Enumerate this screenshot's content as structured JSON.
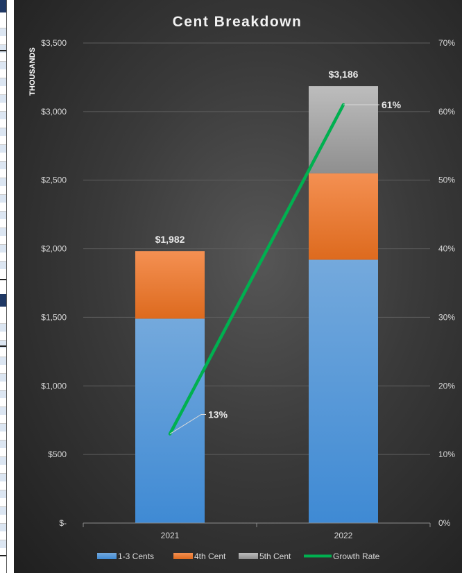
{
  "chart_data": {
    "type": "bar",
    "stacked": true,
    "title": "Cent Breakdown",
    "ylabel": "THOUSANDS",
    "categories": [
      "2021",
      "2022"
    ],
    "ylim": [
      0,
      3500
    ],
    "y_ticks": [
      "$-",
      "$500",
      "$1,000",
      "$1,500",
      "$2,000",
      "$2,500",
      "$3,000",
      "$3,500"
    ],
    "y2lim": [
      0,
      70
    ],
    "y2_ticks": [
      "0%",
      "10%",
      "20%",
      "30%",
      "40%",
      "50%",
      "60%",
      "70%"
    ],
    "series": [
      {
        "name": "1-3 Cents",
        "values": [
          1490,
          1920
        ],
        "color": "#5b9bd5",
        "axis": "left",
        "kind": "bar"
      },
      {
        "name": "4th Cent",
        "values": [
          492,
          630
        ],
        "color": "#ed7d31",
        "axis": "left",
        "kind": "bar"
      },
      {
        "name": "5th Cent",
        "values": [
          0,
          636
        ],
        "color": "#a5a5a5",
        "axis": "left",
        "kind": "bar"
      },
      {
        "name": "Growth Rate",
        "values": [
          13,
          61
        ],
        "color": "#00b050",
        "axis": "right",
        "kind": "line"
      }
    ],
    "total_labels": [
      "$1,982",
      "$3,186"
    ],
    "line_labels": [
      "13%",
      "61%"
    ],
    "grid": true,
    "legend": "bottom"
  }
}
